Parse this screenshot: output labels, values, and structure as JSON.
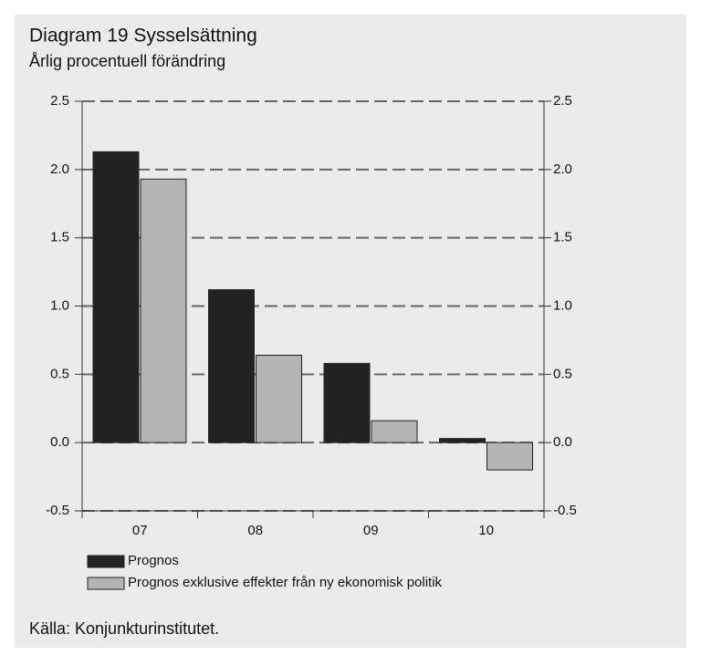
{
  "chart_data": {
    "type": "bar",
    "title": "Diagram 19 Sysselsättning",
    "subtitle": "Årlig procentuell förändring",
    "source": "Källa: Konjunkturinstitutet.",
    "categories": [
      "07",
      "08",
      "09",
      "10"
    ],
    "series": [
      {
        "name": "Prognos",
        "color": "#222222",
        "values": [
          2.13,
          1.12,
          0.58,
          0.03
        ]
      },
      {
        "name": "Prognos exklusive effekter från ny ekonomisk politik",
        "color": "#b4b4b4",
        "values": [
          1.93,
          0.64,
          0.16,
          -0.2
        ]
      }
    ],
    "ylim": [
      -0.5,
      2.5
    ],
    "yticks": [
      -0.5,
      {
        "value": 0,
        "label": "0.0"
      },
      0.5,
      {
        "value": 1,
        "label": "1.0"
      },
      1.5,
      {
        "value": 2,
        "label": "2.0"
      },
      2.5
    ],
    "y2lim": [
      -0.5,
      2.5
    ],
    "y2ticks": [
      -0.5,
      {
        "value": 0,
        "label": "0.0"
      },
      0.5,
      {
        "value": 1,
        "label": "1.0"
      },
      1.5,
      {
        "value": 2,
        "label": "2.0"
      },
      2.5
    ],
    "grid": true
  }
}
